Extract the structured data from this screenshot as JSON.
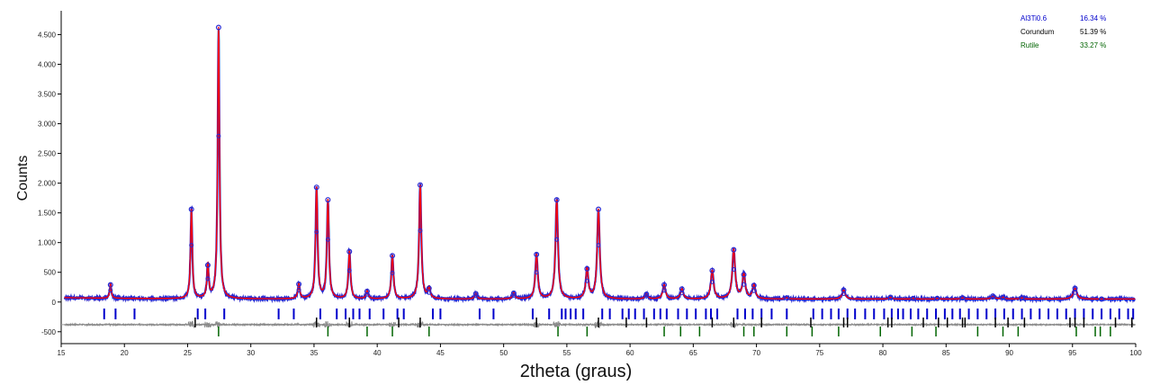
{
  "chart_data": {
    "type": "line",
    "xlabel": "2theta (graus)",
    "ylabel": "Counts",
    "xlim": [
      15,
      100
    ],
    "ylim": [
      -700,
      4900
    ],
    "x_ticks": [
      15,
      20,
      25,
      30,
      35,
      40,
      45,
      50,
      55,
      60,
      65,
      70,
      75,
      80,
      85,
      90,
      95,
      100
    ],
    "y_ticks": [
      {
        "value": 4500,
        "label": "4.500"
      },
      {
        "value": 4000,
        "label": "4.000"
      },
      {
        "value": 3500,
        "label": "3.500"
      },
      {
        "value": 3000,
        "label": "3.000"
      },
      {
        "value": 2500,
        "label": "2.500"
      },
      {
        "value": 2000,
        "label": "2.000"
      },
      {
        "value": 1500,
        "label": "1.500"
      },
      {
        "value": 1000,
        "label": "1.000"
      },
      {
        "value": 500,
        "label": "500"
      },
      {
        "value": 0,
        "label": "0"
      },
      {
        "value": -500,
        "label": "-500"
      }
    ],
    "background": 50,
    "difference_offset": -380,
    "peaks": [
      {
        "x": 18.9,
        "h": 290
      },
      {
        "x": 25.3,
        "h": 1560
      },
      {
        "x": 26.6,
        "h": 620
      },
      {
        "x": 27.45,
        "h": 4620
      },
      {
        "x": 33.8,
        "h": 300
      },
      {
        "x": 35.2,
        "h": 1930
      },
      {
        "x": 36.1,
        "h": 1720
      },
      {
        "x": 37.8,
        "h": 850
      },
      {
        "x": 39.2,
        "h": 180
      },
      {
        "x": 41.2,
        "h": 780
      },
      {
        "x": 43.4,
        "h": 1970
      },
      {
        "x": 44.1,
        "h": 230
      },
      {
        "x": 47.8,
        "h": 140
      },
      {
        "x": 50.8,
        "h": 150
      },
      {
        "x": 52.6,
        "h": 800
      },
      {
        "x": 54.2,
        "h": 1720
      },
      {
        "x": 56.6,
        "h": 560
      },
      {
        "x": 57.5,
        "h": 1560
      },
      {
        "x": 61.3,
        "h": 130
      },
      {
        "x": 62.7,
        "h": 290
      },
      {
        "x": 64.1,
        "h": 220
      },
      {
        "x": 66.5,
        "h": 530
      },
      {
        "x": 68.2,
        "h": 880
      },
      {
        "x": 69.0,
        "h": 460
      },
      {
        "x": 69.8,
        "h": 280
      },
      {
        "x": 72.4,
        "h": 70
      },
      {
        "x": 76.9,
        "h": 200
      },
      {
        "x": 80.6,
        "h": 80
      },
      {
        "x": 82.4,
        "h": 60
      },
      {
        "x": 84.3,
        "h": 60
      },
      {
        "x": 86.3,
        "h": 70
      },
      {
        "x": 88.7,
        "h": 100
      },
      {
        "x": 89.5,
        "h": 80
      },
      {
        "x": 91.0,
        "h": 70
      },
      {
        "x": 95.2,
        "h": 230
      },
      {
        "x": 97.3,
        "h": 50
      }
    ],
    "reflection_ticks": [
      {
        "phase": "Al3Ti0.6",
        "color": "#0000cc",
        "x": [
          18.4,
          19.3,
          20.8,
          25.8,
          26.4,
          27.9,
          32.2,
          33.4,
          35.5,
          36.8,
          37.5,
          38.1,
          38.6,
          39.4,
          40.5,
          41.6,
          42.1,
          44.4,
          45.0,
          48.1,
          49.2,
          52.3,
          53.6,
          54.6,
          54.9,
          55.3,
          55.7,
          56.3,
          57.8,
          58.4,
          59.4,
          59.9,
          60.4,
          61.1,
          61.9,
          62.4,
          62.9,
          63.8,
          64.5,
          65.2,
          66.0,
          66.4,
          66.9,
          68.5,
          69.1,
          69.7,
          70.4,
          71.2,
          72.4,
          74.5,
          75.2,
          75.9,
          76.5,
          77.2,
          77.8,
          78.6,
          79.3,
          80.1,
          80.7,
          81.2,
          81.6,
          82.2,
          82.8,
          83.5,
          84.2,
          84.9,
          85.5,
          86.1,
          86.8,
          87.5,
          88.2,
          88.9,
          89.6,
          90.3,
          91.0,
          91.7,
          92.4,
          93.1,
          93.8,
          94.5,
          95.2,
          95.9,
          96.6,
          97.3,
          98.0,
          98.7,
          99.4,
          99.8
        ]
      },
      {
        "phase": "Corundum",
        "color": "#000000",
        "x": [
          25.6,
          35.2,
          37.8,
          41.7,
          43.4,
          52.6,
          57.5,
          59.7,
          61.3,
          66.5,
          68.2,
          70.4,
          74.3,
          76.9,
          77.2,
          80.4,
          80.7,
          83.2,
          84.4,
          85.1,
          86.3,
          86.5,
          88.9,
          89.9,
          91.2,
          94.8,
          95.2,
          95.9,
          98.4,
          99.7
        ]
      },
      {
        "phase": "Rutile",
        "color": "#006400",
        "x": [
          27.45,
          36.1,
          39.2,
          41.2,
          44.1,
          54.3,
          56.6,
          62.7,
          64.0,
          65.5,
          69.0,
          69.8,
          72.4,
          74.4,
          76.5,
          79.8,
          82.3,
          84.2,
          87.5,
          89.5,
          90.7,
          95.3,
          96.8,
          97.2,
          98.0
        ]
      }
    ],
    "legend": [
      {
        "name": "Al3Ti0.6",
        "value": "16.34 %",
        "color": "#0000cc"
      },
      {
        "name": "Corundum",
        "value": "51.39 %",
        "color": "#000000"
      },
      {
        "name": "Rutile",
        "value": "33.27 %",
        "color": "#006400"
      }
    ],
    "colors": {
      "observed": "#3333cc",
      "calculated": "#ff0000",
      "difference": "#808080",
      "axis": "#000000",
      "zero_line": "#808080"
    }
  }
}
